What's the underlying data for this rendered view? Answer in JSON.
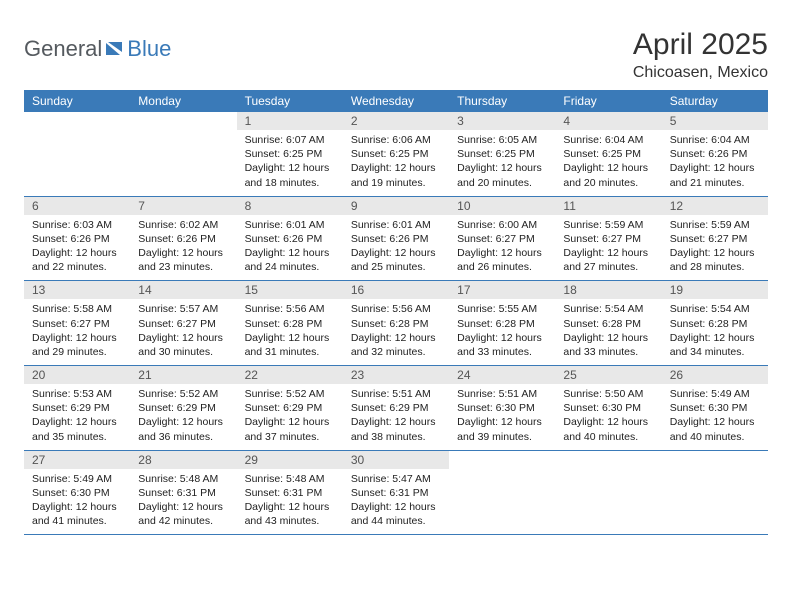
{
  "logo": {
    "text1": "General",
    "text2": "Blue"
  },
  "title": "April 2025",
  "location": "Chicoasen, Mexico",
  "colors": {
    "header_bg": "#3a7ab8",
    "header_text": "#ffffff",
    "daynum_bg": "#e8e8e8",
    "daynum_text": "#555555",
    "body_text": "#222222",
    "border": "#3a7ab8",
    "page_bg": "#ffffff",
    "logo_gray": "#555a5f",
    "logo_blue": "#3a7ab8"
  },
  "day_names": [
    "Sunday",
    "Monday",
    "Tuesday",
    "Wednesday",
    "Thursday",
    "Friday",
    "Saturday"
  ],
  "weeks": [
    [
      null,
      null,
      {
        "n": "1",
        "sunrise": "Sunrise: 6:07 AM",
        "sunset": "Sunset: 6:25 PM",
        "daylight": "Daylight: 12 hours and 18 minutes."
      },
      {
        "n": "2",
        "sunrise": "Sunrise: 6:06 AM",
        "sunset": "Sunset: 6:25 PM",
        "daylight": "Daylight: 12 hours and 19 minutes."
      },
      {
        "n": "3",
        "sunrise": "Sunrise: 6:05 AM",
        "sunset": "Sunset: 6:25 PM",
        "daylight": "Daylight: 12 hours and 20 minutes."
      },
      {
        "n": "4",
        "sunrise": "Sunrise: 6:04 AM",
        "sunset": "Sunset: 6:25 PM",
        "daylight": "Daylight: 12 hours and 20 minutes."
      },
      {
        "n": "5",
        "sunrise": "Sunrise: 6:04 AM",
        "sunset": "Sunset: 6:26 PM",
        "daylight": "Daylight: 12 hours and 21 minutes."
      }
    ],
    [
      {
        "n": "6",
        "sunrise": "Sunrise: 6:03 AM",
        "sunset": "Sunset: 6:26 PM",
        "daylight": "Daylight: 12 hours and 22 minutes."
      },
      {
        "n": "7",
        "sunrise": "Sunrise: 6:02 AM",
        "sunset": "Sunset: 6:26 PM",
        "daylight": "Daylight: 12 hours and 23 minutes."
      },
      {
        "n": "8",
        "sunrise": "Sunrise: 6:01 AM",
        "sunset": "Sunset: 6:26 PM",
        "daylight": "Daylight: 12 hours and 24 minutes."
      },
      {
        "n": "9",
        "sunrise": "Sunrise: 6:01 AM",
        "sunset": "Sunset: 6:26 PM",
        "daylight": "Daylight: 12 hours and 25 minutes."
      },
      {
        "n": "10",
        "sunrise": "Sunrise: 6:00 AM",
        "sunset": "Sunset: 6:27 PM",
        "daylight": "Daylight: 12 hours and 26 minutes."
      },
      {
        "n": "11",
        "sunrise": "Sunrise: 5:59 AM",
        "sunset": "Sunset: 6:27 PM",
        "daylight": "Daylight: 12 hours and 27 minutes."
      },
      {
        "n": "12",
        "sunrise": "Sunrise: 5:59 AM",
        "sunset": "Sunset: 6:27 PM",
        "daylight": "Daylight: 12 hours and 28 minutes."
      }
    ],
    [
      {
        "n": "13",
        "sunrise": "Sunrise: 5:58 AM",
        "sunset": "Sunset: 6:27 PM",
        "daylight": "Daylight: 12 hours and 29 minutes."
      },
      {
        "n": "14",
        "sunrise": "Sunrise: 5:57 AM",
        "sunset": "Sunset: 6:27 PM",
        "daylight": "Daylight: 12 hours and 30 minutes."
      },
      {
        "n": "15",
        "sunrise": "Sunrise: 5:56 AM",
        "sunset": "Sunset: 6:28 PM",
        "daylight": "Daylight: 12 hours and 31 minutes."
      },
      {
        "n": "16",
        "sunrise": "Sunrise: 5:56 AM",
        "sunset": "Sunset: 6:28 PM",
        "daylight": "Daylight: 12 hours and 32 minutes."
      },
      {
        "n": "17",
        "sunrise": "Sunrise: 5:55 AM",
        "sunset": "Sunset: 6:28 PM",
        "daylight": "Daylight: 12 hours and 33 minutes."
      },
      {
        "n": "18",
        "sunrise": "Sunrise: 5:54 AM",
        "sunset": "Sunset: 6:28 PM",
        "daylight": "Daylight: 12 hours and 33 minutes."
      },
      {
        "n": "19",
        "sunrise": "Sunrise: 5:54 AM",
        "sunset": "Sunset: 6:28 PM",
        "daylight": "Daylight: 12 hours and 34 minutes."
      }
    ],
    [
      {
        "n": "20",
        "sunrise": "Sunrise: 5:53 AM",
        "sunset": "Sunset: 6:29 PM",
        "daylight": "Daylight: 12 hours and 35 minutes."
      },
      {
        "n": "21",
        "sunrise": "Sunrise: 5:52 AM",
        "sunset": "Sunset: 6:29 PM",
        "daylight": "Daylight: 12 hours and 36 minutes."
      },
      {
        "n": "22",
        "sunrise": "Sunrise: 5:52 AM",
        "sunset": "Sunset: 6:29 PM",
        "daylight": "Daylight: 12 hours and 37 minutes."
      },
      {
        "n": "23",
        "sunrise": "Sunrise: 5:51 AM",
        "sunset": "Sunset: 6:29 PM",
        "daylight": "Daylight: 12 hours and 38 minutes."
      },
      {
        "n": "24",
        "sunrise": "Sunrise: 5:51 AM",
        "sunset": "Sunset: 6:30 PM",
        "daylight": "Daylight: 12 hours and 39 minutes."
      },
      {
        "n": "25",
        "sunrise": "Sunrise: 5:50 AM",
        "sunset": "Sunset: 6:30 PM",
        "daylight": "Daylight: 12 hours and 40 minutes."
      },
      {
        "n": "26",
        "sunrise": "Sunrise: 5:49 AM",
        "sunset": "Sunset: 6:30 PM",
        "daylight": "Daylight: 12 hours and 40 minutes."
      }
    ],
    [
      {
        "n": "27",
        "sunrise": "Sunrise: 5:49 AM",
        "sunset": "Sunset: 6:30 PM",
        "daylight": "Daylight: 12 hours and 41 minutes."
      },
      {
        "n": "28",
        "sunrise": "Sunrise: 5:48 AM",
        "sunset": "Sunset: 6:31 PM",
        "daylight": "Daylight: 12 hours and 42 minutes."
      },
      {
        "n": "29",
        "sunrise": "Sunrise: 5:48 AM",
        "sunset": "Sunset: 6:31 PM",
        "daylight": "Daylight: 12 hours and 43 minutes."
      },
      {
        "n": "30",
        "sunrise": "Sunrise: 5:47 AM",
        "sunset": "Sunset: 6:31 PM",
        "daylight": "Daylight: 12 hours and 44 minutes."
      },
      null,
      null,
      null
    ]
  ]
}
